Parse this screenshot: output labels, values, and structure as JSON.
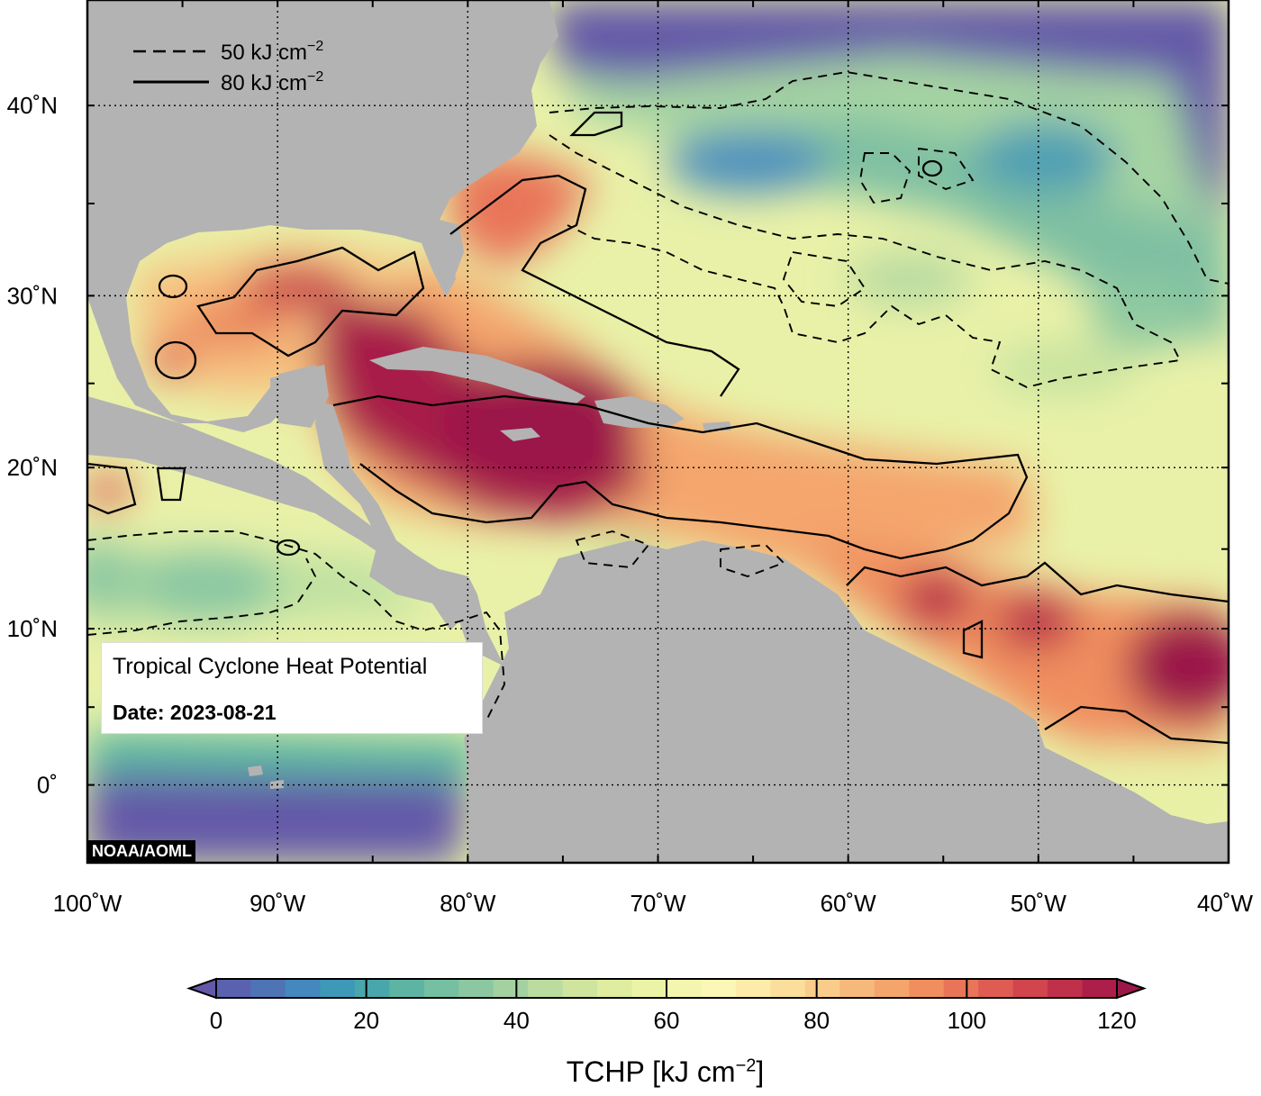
{
  "title": "Tropical Cyclone Heat Potential",
  "date_text": "Date: 2023-08-21",
  "credit": "NOAA/AOML",
  "legend": {
    "dashed": "50 kJ cm",
    "solid": "80 kJ cm",
    "exponent": "−2"
  },
  "lat_labels": [
    "40˚N",
    "30˚N",
    "20˚N",
    "10˚N",
    "0˚"
  ],
  "lat_values": [
    40,
    30,
    20,
    10,
    0
  ],
  "lon_labels": [
    "100˚W",
    "90˚W",
    "80˚W",
    "70˚W",
    "60˚W",
    "50˚W",
    "40˚W"
  ],
  "lon_values": [
    -100,
    -90,
    -80,
    -70,
    -60,
    -50,
    -40
  ],
  "colorbar": {
    "tick_labels": [
      "0",
      "20",
      "40",
      "60",
      "80",
      "100",
      "120"
    ],
    "tick_values": [
      0,
      20,
      40,
      60,
      80,
      100,
      120
    ],
    "label": "TCHP [kJ cm",
    "label_exp": "−2",
    "label_close": "]",
    "colors": [
      "#6459a8",
      "#5a62b0",
      "#4f74b6",
      "#4489be",
      "#3e98b8",
      "#49a7ac",
      "#5db4a3",
      "#75bfa2",
      "#8bc8a1",
      "#a3d2a0",
      "#bbdc9f",
      "#cfe59e",
      "#dfeda0",
      "#ebf3a6",
      "#f3f6ae",
      "#fbf7b4",
      "#fdebaa",
      "#fbdd9c",
      "#f9cc8c",
      "#f6b97c",
      "#f4a56c",
      "#f08e5f",
      "#e97558",
      "#df5c52",
      "#d2454d",
      "#c0304a",
      "#ac1f4a",
      "#9b1749"
    ]
  },
  "map": {
    "extent_lon": [
      -100,
      -40
    ],
    "extent_lat": [
      -5,
      45
    ],
    "ocean_color": "#e7f0a6",
    "land_color": "#b3b3b3",
    "contour_levels": [
      50,
      80
    ]
  }
}
